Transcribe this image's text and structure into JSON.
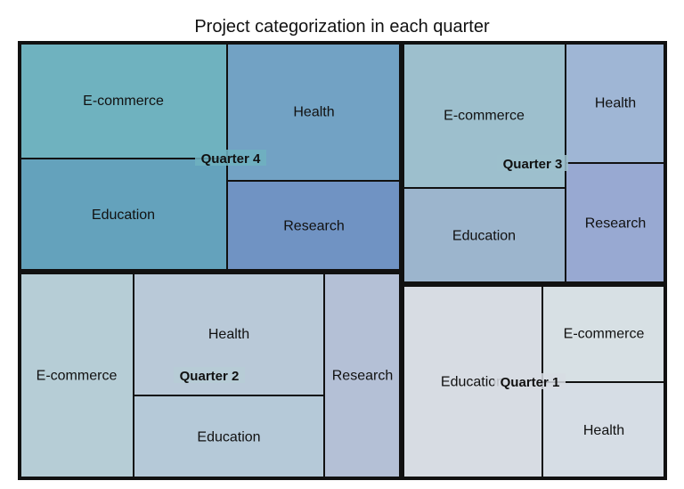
{
  "chart_data": {
    "type": "treemap",
    "title": "Project categorization in each quarter",
    "groups": [
      {
        "name": "Quarter 4",
        "color": "#6fb2bf",
        "items": [
          {
            "label": "E-commerce",
            "value": 30,
            "color": "#6fb2bf"
          },
          {
            "label": "Education",
            "value": 26,
            "color": "#64a2bc"
          },
          {
            "label": "Health",
            "value": 23,
            "color": "#72a2c4"
          },
          {
            "label": "Research",
            "value": 15,
            "color": "#7093c3"
          }
        ]
      },
      {
        "name": "Quarter 3",
        "color": "#9dbfcd",
        "items": [
          {
            "label": "E-commerce",
            "value": 27,
            "color": "#9dbfcd"
          },
          {
            "label": "Education",
            "value": 18,
            "color": "#9cb5cd"
          },
          {
            "label": "Health",
            "value": 12,
            "color": "#9fb6d5"
          },
          {
            "label": "Research",
            "value": 12,
            "color": "#98a9d2"
          }
        ]
      },
      {
        "name": "Quarter 2",
        "color": "#b6cdd6",
        "items": [
          {
            "label": "E-commerce",
            "value": 22,
            "color": "#b6cdd6"
          },
          {
            "label": "Health",
            "value": 19,
            "color": "#b9c9d8"
          },
          {
            "label": "Education",
            "value": 13,
            "color": "#b5c9d8"
          },
          {
            "label": "Research",
            "value": 14,
            "color": "#b4c0d6"
          }
        ]
      },
      {
        "name": "Quarter 1",
        "color": "#d7dce3",
        "items": [
          {
            "label": "Education",
            "value": 34,
            "color": "#d7dce3"
          },
          {
            "label": "E-commerce",
            "value": 12,
            "color": "#d7e0e4"
          },
          {
            "label": "Health",
            "value": 14,
            "color": "#d6dde5"
          }
        ]
      }
    ]
  }
}
